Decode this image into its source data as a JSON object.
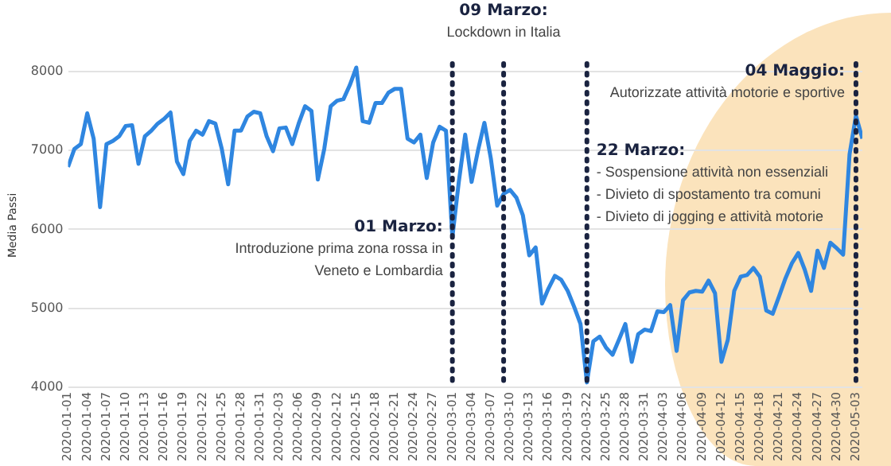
{
  "chart_data": {
    "type": "line",
    "ylabel": "Media Passi",
    "x": [
      "2020-01-01",
      "2020-01-02",
      "2020-01-03",
      "2020-01-04",
      "2020-01-05",
      "2020-01-06",
      "2020-01-07",
      "2020-01-08",
      "2020-01-09",
      "2020-01-10",
      "2020-01-11",
      "2020-01-12",
      "2020-01-13",
      "2020-01-14",
      "2020-01-15",
      "2020-01-16",
      "2020-01-17",
      "2020-01-18",
      "2020-01-19",
      "2020-01-20",
      "2020-01-21",
      "2020-01-22",
      "2020-01-23",
      "2020-01-24",
      "2020-01-25",
      "2020-01-26",
      "2020-01-27",
      "2020-01-28",
      "2020-01-29",
      "2020-01-30",
      "2020-01-31",
      "2020-02-01",
      "2020-02-02",
      "2020-02-03",
      "2020-02-04",
      "2020-02-05",
      "2020-02-06",
      "2020-02-07",
      "2020-02-08",
      "2020-02-09",
      "2020-02-10",
      "2020-02-11",
      "2020-02-12",
      "2020-02-13",
      "2020-02-14",
      "2020-02-15",
      "2020-02-16",
      "2020-02-17",
      "2020-02-18",
      "2020-02-19",
      "2020-02-20",
      "2020-02-21",
      "2020-02-22",
      "2020-02-23",
      "2020-02-24",
      "2020-02-25",
      "2020-02-26",
      "2020-02-27",
      "2020-02-28",
      "2020-02-29",
      "2020-03-01",
      "2020-03-02",
      "2020-03-03",
      "2020-03-04",
      "2020-03-05",
      "2020-03-06",
      "2020-03-07",
      "2020-03-08",
      "2020-03-09",
      "2020-03-10",
      "2020-03-11",
      "2020-03-12",
      "2020-03-13",
      "2020-03-14",
      "2020-03-15",
      "2020-03-16",
      "2020-03-17",
      "2020-03-18",
      "2020-03-19",
      "2020-03-20",
      "2020-03-21",
      "2020-03-22",
      "2020-03-23",
      "2020-03-24",
      "2020-03-25",
      "2020-03-26",
      "2020-03-27",
      "2020-03-28",
      "2020-03-29",
      "2020-03-30",
      "2020-03-31",
      "2020-04-01",
      "2020-04-02",
      "2020-04-03",
      "2020-04-04",
      "2020-04-05",
      "2020-04-06",
      "2020-04-07",
      "2020-04-08",
      "2020-04-09",
      "2020-04-10",
      "2020-04-11",
      "2020-04-12",
      "2020-04-13",
      "2020-04-14",
      "2020-04-15",
      "2020-04-16",
      "2020-04-17",
      "2020-04-18",
      "2020-04-19",
      "2020-04-20",
      "2020-04-21",
      "2020-04-22",
      "2020-04-23",
      "2020-04-24",
      "2020-04-25",
      "2020-04-26",
      "2020-04-27",
      "2020-04-28",
      "2020-04-29",
      "2020-04-30",
      "2020-05-01",
      "2020-05-02",
      "2020-05-03",
      "2020-05-04"
    ],
    "series": [
      {
        "color": "#2f86e0",
        "values": [
          6790,
          7020,
          7080,
          7470,
          7150,
          6280,
          7080,
          7120,
          7180,
          7310,
          7320,
          6830,
          7180,
          7250,
          7340,
          7400,
          7480,
          6860,
          6700,
          7120,
          7250,
          7200,
          7370,
          7340,
          7020,
          6570,
          7250,
          7250,
          7430,
          7490,
          7470,
          7180,
          6990,
          7280,
          7290,
          7080,
          7340,
          7560,
          7500,
          6630,
          7020,
          7560,
          7630,
          7650,
          7830,
          8050,
          7370,
          7350,
          7600,
          7600,
          7730,
          7780,
          7780,
          7150,
          7100,
          7200,
          6650,
          7100,
          7300,
          7250,
          5900,
          6600,
          7200,
          6600,
          7000,
          7350,
          6900,
          6300,
          6450,
          6500,
          6400,
          6180,
          5670,
          5770,
          5060,
          5250,
          5410,
          5360,
          5220,
          5020,
          4800,
          4060,
          4580,
          4640,
          4500,
          4410,
          4600,
          4800,
          4320,
          4670,
          4730,
          4710,
          4960,
          4950,
          5040,
          4460,
          5100,
          5200,
          5220,
          5210,
          5350,
          5190,
          4320,
          4600,
          5220,
          5400,
          5420,
          5510,
          5400,
          4970,
          4930,
          5150,
          5380,
          5570,
          5700,
          5490,
          5220,
          5730,
          5510,
          5830,
          5760,
          5680,
          6950,
          7440,
          7150
        ]
      }
    ],
    "xlim": [
      "2020-01-01",
      "2020-05-04"
    ],
    "xticks": [
      "2020-01-01",
      "2020-01-04",
      "2020-01-07",
      "2020-01-10",
      "2020-01-13",
      "2020-01-16",
      "2020-01-19",
      "2020-01-22",
      "2020-01-25",
      "2020-01-28",
      "2020-01-31",
      "2020-02-03",
      "2020-02-06",
      "2020-02-09",
      "2020-02-12",
      "2020-02-15",
      "2020-02-18",
      "2020-02-21",
      "2020-02-24",
      "2020-02-27",
      "2020-03-01",
      "2020-03-04",
      "2020-03-07",
      "2020-03-10",
      "2020-03-13",
      "2020-03-16",
      "2020-03-19",
      "2020-03-22",
      "2020-03-25",
      "2020-03-28",
      "2020-03-31",
      "2020-04-03",
      "2020-04-06",
      "2020-04-09",
      "2020-04-12",
      "2020-04-15",
      "2020-04-18",
      "2020-04-21",
      "2020-04-24",
      "2020-04-27",
      "2020-04-30",
      "2020-05-03"
    ],
    "ylim": [
      4000,
      8100
    ],
    "yticks": [
      4000,
      5000,
      6000,
      7000,
      8000
    ],
    "grid": "y",
    "legend": false,
    "marker": "none",
    "line_style": "solid",
    "ref_lines": [
      {
        "axis": "x",
        "value": "2020-03-01",
        "label": "01 Marzo:\nIntroduzione prima zona rossa in\nVeneto e Lombardia",
        "color": "#1a2340",
        "line_style": "dotted"
      },
      {
        "axis": "x",
        "value": "2020-03-09",
        "label": "09 Marzo:\nLockdown in Italia",
        "color": "#1a2340",
        "line_style": "dotted"
      },
      {
        "axis": "x",
        "value": "2020-03-22",
        "label": "22 Marzo:\n- Sospensione attività non essenziali\n- Divieto di spostamento tra comuni\n- Divieto di jogging e attività motorie",
        "color": "#1a2340",
        "line_style": "dotted"
      },
      {
        "axis": "x",
        "value": "2020-05-03",
        "label": "04 Maggio:\nAutorizzate attività motorie e sportive",
        "color": "#1a2340",
        "line_style": "dotted"
      }
    ]
  }
}
